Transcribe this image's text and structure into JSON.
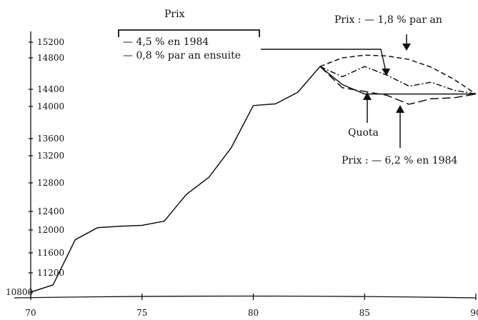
{
  "chart_data": {
    "type": "line",
    "title": "",
    "xlabel": "",
    "ylabel": "",
    "x_ticks": [
      70,
      75,
      80,
      85,
      90
    ],
    "x_tick_labels": [
      "70",
      "75",
      "80",
      "85",
      "90"
    ],
    "y_ticks": [
      10800,
      11200,
      11600,
      12000,
      12400,
      12800,
      13200,
      13600,
      14000,
      14400,
      14800,
      15200
    ],
    "y_tick_labels": [
      "10800",
      "11200",
      "11600",
      "12000",
      "12400",
      "12800",
      "13200",
      "13600",
      "14000",
      "14400",
      "14800",
      "15200"
    ],
    "series": [
      {
        "name": "",
        "style": "solid",
        "x": [
          70,
          71,
          72,
          73,
          74,
          75,
          76,
          77,
          78,
          79,
          80,
          81,
          82,
          83
        ],
        "y": [
          10800,
          10950,
          11830,
          12050,
          12080,
          12100,
          12190,
          12640,
          12880,
          13380,
          14020,
          14060,
          14330,
          14690
        ]
      },
      {
        "name": "Quota",
        "style": "solid",
        "x": [
          83,
          84,
          85,
          86,
          87,
          88,
          89,
          90
        ],
        "y": [
          14690,
          14460,
          14290,
          14290,
          14290,
          14290,
          14290,
          14290
        ]
      },
      {
        "name": "Prix : — 1,8 % par an",
        "style": "dashed",
        "x": [
          83,
          84,
          85,
          86,
          87,
          88,
          89,
          90
        ],
        "y": [
          14690,
          14800,
          14870,
          14850,
          14780,
          14680,
          14530,
          14290
        ]
      },
      {
        "name": "— 4,5 % en 1984 — 0,8 % par an ensuite",
        "style": "dashdot",
        "x": [
          83,
          84,
          85,
          86,
          87,
          88,
          89,
          90
        ],
        "y": [
          14690,
          14560,
          14690,
          14580,
          14440,
          14490,
          14380,
          14290
        ]
      },
      {
        "name": "Prix : — 6,2 % en 1984",
        "style": "longdash",
        "x": [
          83,
          84,
          85,
          86,
          87,
          88,
          89,
          90
        ],
        "y": [
          14690,
          14420,
          14350,
          14260,
          14050,
          14180,
          14200,
          14290
        ]
      }
    ],
    "annotations": {
      "prix_heading": "Prix",
      "bracket_line1": "— 4,5 % en 1984",
      "bracket_line2": "— 0,8 % par an ensuite",
      "top_right": "Prix : — 1,8 % par an",
      "quota": "Quota",
      "bottom_right": "Prix : — 6,2 % en 1984"
    },
    "grid": false,
    "xlim": [
      70,
      90
    ],
    "ylim": [
      10800,
      15200
    ]
  }
}
